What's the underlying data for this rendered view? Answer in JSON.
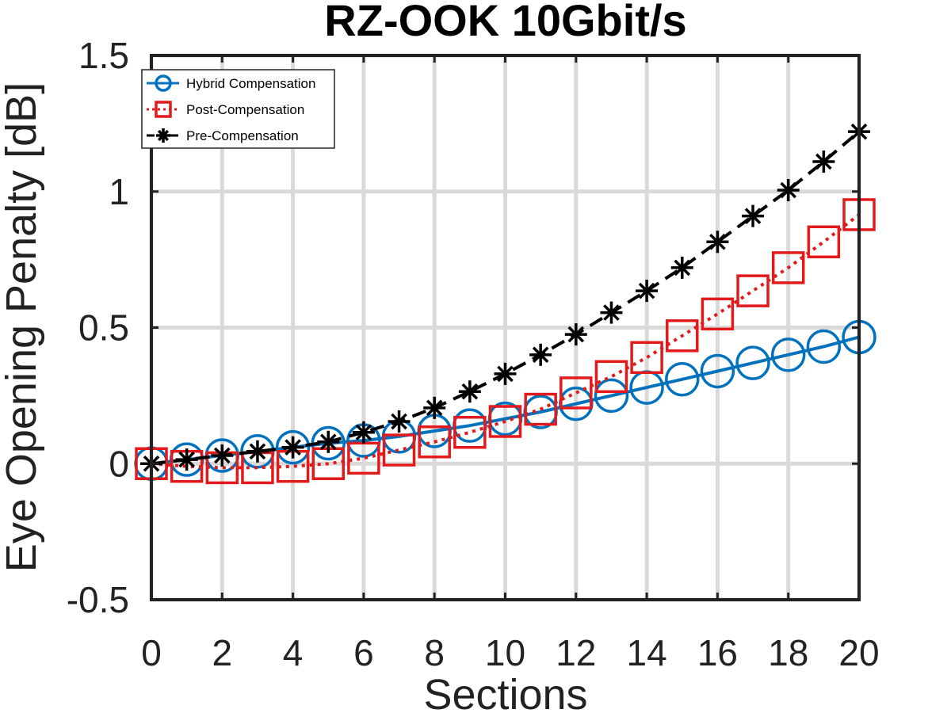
{
  "chart_data": {
    "type": "line",
    "title": "RZ-OOK 10Gbit/s",
    "xlabel": "Sections",
    "ylabel": "Eye Opening Penalty [dB]",
    "xlim": [
      0,
      20
    ],
    "ylim": [
      -0.5,
      1.5
    ],
    "x_ticks": [
      "0",
      "2",
      "4",
      "6",
      "8",
      "10",
      "12",
      "14",
      "16",
      "18",
      "20"
    ],
    "y_ticks": [
      "-0.5",
      "0",
      "0.5",
      "1",
      "1.5"
    ],
    "grid": true,
    "legend_position": "top-left",
    "x": [
      0,
      1,
      2,
      3,
      4,
      5,
      6,
      7,
      8,
      9,
      10,
      11,
      12,
      13,
      14,
      15,
      16,
      17,
      18,
      19,
      20
    ],
    "series": [
      {
        "name": "Hybrid Compensation",
        "color": "#0072BD",
        "marker": "circle",
        "line": "solid",
        "values": [
          0.0,
          0.015,
          0.03,
          0.045,
          0.06,
          0.075,
          0.085,
          0.1,
          0.12,
          0.14,
          0.165,
          0.19,
          0.22,
          0.25,
          0.28,
          0.31,
          0.34,
          0.37,
          0.4,
          0.43,
          0.465
        ]
      },
      {
        "name": "Post-Compensation",
        "color": "#E31A1C",
        "marker": "square",
        "line": "dotted",
        "values": [
          0.0,
          -0.01,
          -0.015,
          -0.015,
          -0.01,
          0.0,
          0.02,
          0.05,
          0.08,
          0.115,
          0.155,
          0.2,
          0.26,
          0.32,
          0.39,
          0.47,
          0.55,
          0.635,
          0.72,
          0.815,
          0.915
        ]
      },
      {
        "name": "Pre-Compensation",
        "color": "#000000",
        "marker": "asterisk",
        "line": "dashed",
        "values": [
          0.0,
          0.015,
          0.03,
          0.045,
          0.06,
          0.08,
          0.115,
          0.155,
          0.205,
          0.265,
          0.33,
          0.4,
          0.475,
          0.555,
          0.635,
          0.72,
          0.815,
          0.91,
          1.005,
          1.11,
          1.22
        ]
      }
    ]
  }
}
